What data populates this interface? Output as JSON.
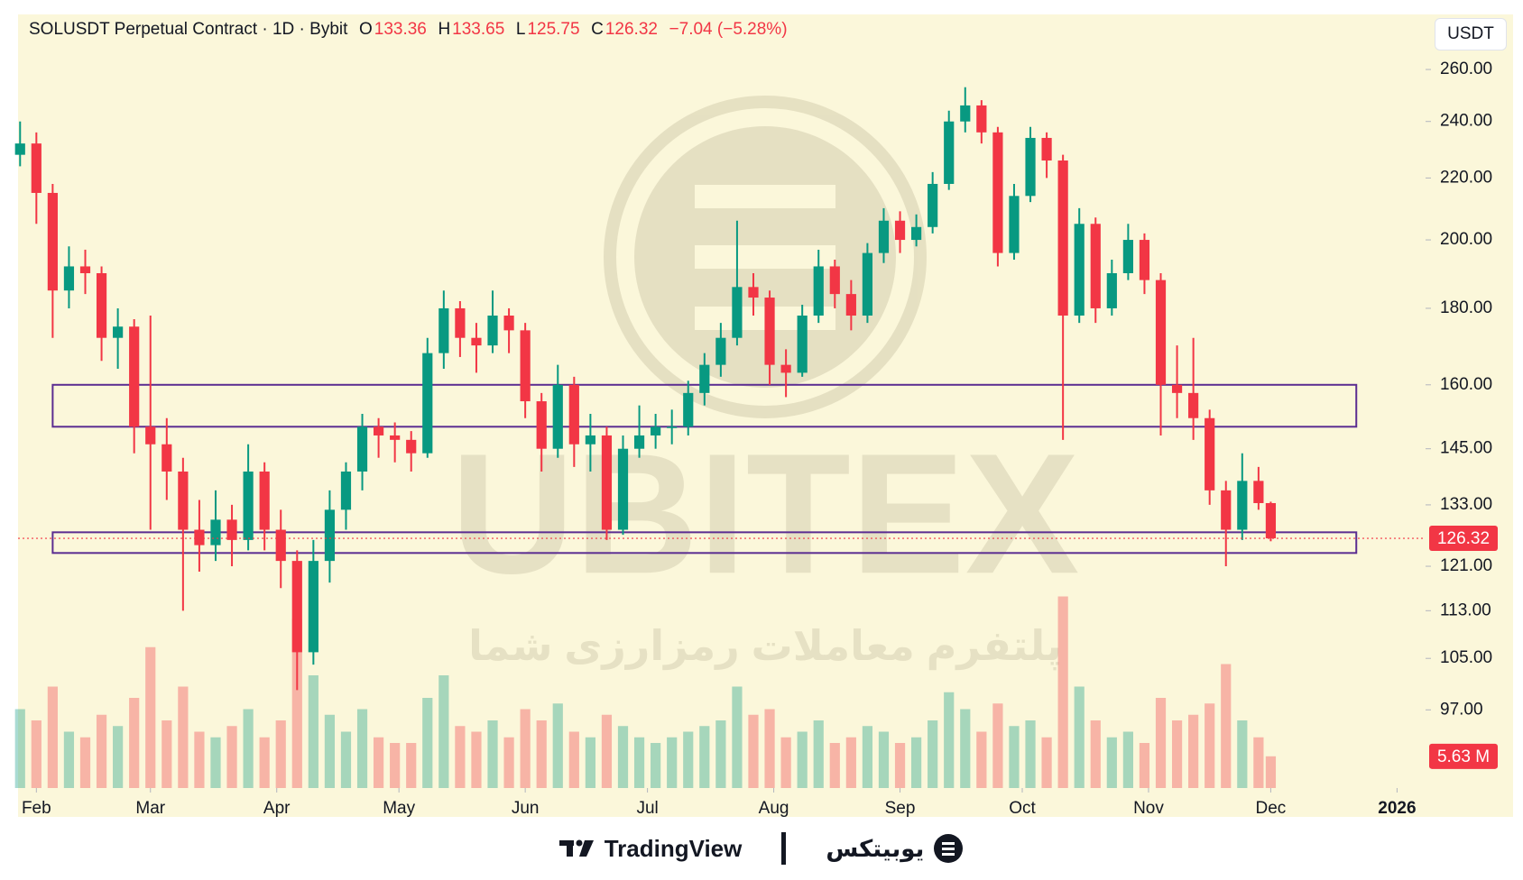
{
  "header": {
    "symbol_line": "SOLUSDT Perpetual Contract · 1D · Bybit",
    "o_label": "O",
    "h_label": "H",
    "l_label": "L",
    "c_label": "C",
    "change": "−7.04 (−5.28%)"
  },
  "currency": "USDT",
  "chart_data": {
    "type": "candlestick",
    "x": [
      -4,
      0,
      4,
      8,
      12,
      16,
      20,
      24,
      28,
      32,
      36,
      40,
      44,
      48,
      52,
      56,
      60,
      64,
      68,
      72,
      76,
      80,
      84,
      88,
      92,
      96,
      100,
      104,
      108,
      112,
      116,
      120,
      124,
      128,
      132,
      136,
      140,
      144,
      148,
      152,
      156,
      160,
      164,
      168,
      172,
      176,
      180,
      184,
      188,
      192,
      196,
      200,
      204,
      208,
      212,
      216,
      220,
      224,
      228,
      232,
      236,
      240,
      244,
      248,
      252,
      256,
      260,
      264,
      268,
      272,
      276,
      280,
      284,
      288,
      292,
      296,
      300,
      303
    ],
    "open": [
      228,
      232,
      215,
      185,
      192,
      190,
      172,
      175,
      150,
      146,
      140,
      128,
      125,
      130,
      126,
      140,
      128,
      122,
      106,
      122,
      132,
      140,
      150,
      148,
      147,
      144,
      168,
      180,
      172,
      170,
      178,
      174,
      156,
      145,
      160,
      146,
      148,
      128,
      145,
      148,
      150,
      150,
      158,
      165,
      172,
      186,
      183,
      165,
      163,
      178,
      192,
      184,
      178,
      196,
      206,
      200,
      204,
      218,
      240,
      246,
      236,
      196,
      214,
      234,
      226,
      178,
      205,
      180,
      190,
      200,
      188,
      160,
      158,
      152,
      136,
      128,
      138,
      133.36
    ],
    "high": [
      240,
      236,
      218,
      198,
      197,
      192,
      180,
      177,
      178,
      152,
      143,
      134,
      136,
      133,
      146,
      142,
      132,
      124,
      126,
      136,
      142,
      153,
      152,
      151,
      149,
      172,
      185,
      182,
      176,
      185,
      180,
      176,
      158,
      165,
      162,
      153,
      150,
      148,
      155,
      153,
      154,
      161,
      168,
      176,
      206,
      190,
      185,
      169,
      181,
      197,
      194,
      188,
      199,
      210,
      209,
      208,
      222,
      244,
      253,
      248,
      238,
      218,
      238,
      236,
      228,
      210,
      207,
      194,
      205,
      202,
      190,
      170,
      172,
      154,
      138,
      144,
      141,
      133.65
    ],
    "low": [
      224,
      205,
      172,
      180,
      184,
      166,
      164,
      144,
      128,
      134,
      113,
      120,
      122,
      121,
      124,
      124,
      117,
      100,
      104,
      118,
      128,
      136,
      143,
      142,
      140,
      143,
      164,
      167,
      163,
      168,
      168,
      152,
      140,
      143,
      141,
      140,
      126,
      127,
      143,
      145,
      146,
      148,
      155,
      162,
      170,
      178,
      160,
      157,
      162,
      176,
      180,
      174,
      176,
      193,
      196,
      198,
      202,
      216,
      236,
      232,
      192,
      194,
      212,
      220,
      147,
      176,
      176,
      178,
      188,
      184,
      148,
      152,
      147,
      133,
      121,
      126,
      132,
      125.75
    ],
    "close": [
      232,
      215,
      185,
      192,
      190,
      172,
      175,
      150,
      146,
      140,
      128,
      125,
      130,
      126,
      140,
      128,
      122,
      106,
      122,
      132,
      140,
      150,
      148,
      147,
      144,
      168,
      180,
      172,
      170,
      178,
      174,
      156,
      145,
      160,
      146,
      148,
      128,
      145,
      148,
      150,
      150,
      158,
      165,
      172,
      186,
      183,
      165,
      163,
      178,
      192,
      184,
      178,
      196,
      206,
      200,
      204,
      218,
      240,
      246,
      236,
      196,
      214,
      234,
      226,
      178,
      205,
      180,
      190,
      200,
      188,
      160,
      158,
      152,
      136,
      128,
      138,
      133.36,
      126.32
    ],
    "volume": [
      14,
      12,
      18,
      10,
      9,
      13,
      11,
      16,
      25,
      12,
      18,
      10,
      9,
      11,
      14,
      9,
      12,
      30,
      20,
      13,
      10,
      14,
      9,
      8,
      8,
      16,
      20,
      11,
      10,
      12,
      9,
      14,
      12,
      15,
      10,
      9,
      13,
      11,
      9,
      8,
      9,
      10,
      11,
      12,
      18,
      13,
      14,
      9,
      10,
      12,
      8,
      9,
      11,
      10,
      8,
      9,
      12,
      17,
      14,
      10,
      15,
      11,
      12,
      9,
      34,
      18,
      12,
      9,
      10,
      8,
      16,
      12,
      13,
      15,
      22,
      12,
      9,
      5.63
    ],
    "last_volume_label": "5.63 M",
    "colors": {
      "up": "#089981",
      "down": "#f23645",
      "zone": "#5b2d91"
    },
    "log_scale": true,
    "ylim": [
      86,
      283
    ],
    "yticks": [
      {
        "value": 97,
        "label": "97.00"
      },
      {
        "value": 105,
        "label": "105.00"
      },
      {
        "value": 113,
        "label": "113.00"
      },
      {
        "value": 121,
        "label": "121.00"
      },
      {
        "value": 133,
        "label": "133.00"
      },
      {
        "value": 145,
        "label": "145.00"
      },
      {
        "value": 160,
        "label": "160.00"
      },
      {
        "value": 180,
        "label": "180.00"
      },
      {
        "value": 200,
        "label": "200.00"
      },
      {
        "value": 220,
        "label": "220.00"
      },
      {
        "value": 240,
        "label": "240.00"
      },
      {
        "value": 260,
        "label": "260.00"
      }
    ],
    "xlim": [
      -4.5,
      341
    ],
    "xticks": [
      {
        "value": 0,
        "label": "Feb"
      },
      {
        "value": 28,
        "label": "Mar"
      },
      {
        "value": 59,
        "label": "Apr"
      },
      {
        "value": 89,
        "label": "May"
      },
      {
        "value": 120,
        "label": "Jun"
      },
      {
        "value": 150,
        "label": "Jul"
      },
      {
        "value": 181,
        "label": "Aug"
      },
      {
        "value": 212,
        "label": "Sep"
      },
      {
        "value": 242,
        "label": "Oct"
      },
      {
        "value": 273,
        "label": "Nov"
      },
      {
        "value": 303,
        "label": "Dec"
      },
      {
        "value": 334,
        "label": "2026"
      }
    ],
    "volume_ylim": [
      0,
      40
    ],
    "zones": [
      {
        "x": [
          4,
          324
        ],
        "y": [
          150,
          160
        ]
      },
      {
        "x": [
          4,
          324
        ],
        "y": [
          123.5,
          127.5
        ]
      }
    ]
  },
  "watermark": {
    "name": "UBITEX",
    "tagline": "پلتفرم معاملات رمزارزی شما"
  },
  "footer": {
    "tradingview": "TradingView",
    "brand": "یوبیتکس"
  }
}
